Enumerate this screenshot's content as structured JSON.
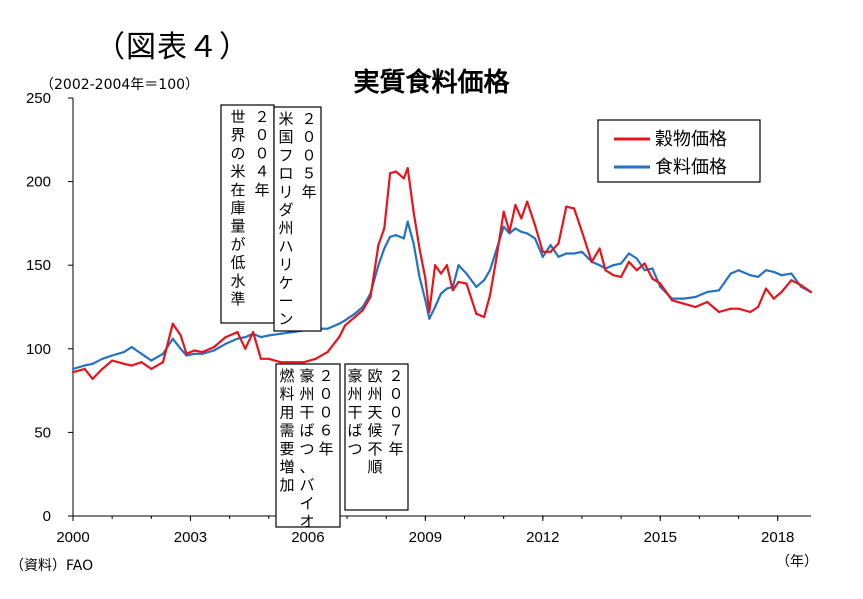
{
  "figure_label": "（図表４）",
  "chart_data": {
    "type": "line",
    "title": "実質食料価格",
    "unit_label": "（2002-2004年＝100）",
    "source": "（資料）FAO",
    "x_unit": "（年）",
    "xlim": [
      2000,
      2018.85
    ],
    "ylim": [
      0,
      250
    ],
    "x_ticks": [
      "2000",
      "2003",
      "2006",
      "2009",
      "2012",
      "2015",
      "2018"
    ],
    "y_ticks": [
      "0",
      "50",
      "100",
      "150",
      "200",
      "250"
    ],
    "grid": false,
    "legend_position": "top-right",
    "series": [
      {
        "name": "穀物価格",
        "color": "#e8141c",
        "x": [
          2000.0,
          2000.3,
          2000.5,
          2000.75,
          2001.0,
          2001.3,
          2001.5,
          2001.75,
          2002.0,
          2002.3,
          2002.55,
          2002.75,
          2002.9,
          2003.1,
          2003.3,
          2003.6,
          2003.9,
          2004.2,
          2004.4,
          2004.6,
          2004.8,
          2005.0,
          2005.3,
          2005.6,
          2005.9,
          2006.2,
          2006.5,
          2006.8,
          2006.95,
          2007.2,
          2007.4,
          2007.6,
          2007.8,
          2007.95,
          2008.1,
          2008.25,
          2008.45,
          2008.55,
          2008.7,
          2008.85,
          2009.0,
          2009.1,
          2009.25,
          2009.4,
          2009.55,
          2009.7,
          2009.85,
          2010.05,
          2010.3,
          2010.5,
          2010.65,
          2010.8,
          2011.0,
          2011.15,
          2011.3,
          2011.45,
          2011.6,
          2011.8,
          2012.0,
          2012.2,
          2012.4,
          2012.6,
          2012.8,
          2013.0,
          2013.25,
          2013.45,
          2013.6,
          2013.8,
          2014.0,
          2014.2,
          2014.4,
          2014.6,
          2014.8,
          2015.0,
          2015.3,
          2015.6,
          2015.9,
          2016.2,
          2016.5,
          2016.8,
          2017.0,
          2017.3,
          2017.5,
          2017.7,
          2017.9,
          2018.1,
          2018.35,
          2018.6,
          2018.85
        ],
        "values": [
          86,
          88,
          82,
          88,
          93,
          91,
          90,
          92,
          88,
          92,
          115,
          108,
          97,
          99,
          98,
          101,
          107,
          110,
          100,
          110,
          94,
          94,
          92,
          92,
          92,
          94,
          98,
          107,
          114,
          119,
          123,
          131,
          162,
          172,
          205,
          206,
          202,
          208,
          182,
          160,
          142,
          122,
          150,
          145,
          150,
          135,
          140,
          139,
          121,
          119,
          132,
          152,
          182,
          170,
          186,
          178,
          188,
          174,
          158,
          158,
          163,
          185,
          184,
          170,
          152,
          160,
          147,
          144,
          143,
          152,
          147,
          151,
          142,
          139,
          129,
          127,
          125,
          128,
          122,
          124,
          124,
          122,
          125,
          136,
          130,
          134,
          141,
          138,
          134
        ]
      },
      {
        "name": "食料価格",
        "color": "#2372c4",
        "x": [
          2000.0,
          2000.3,
          2000.5,
          2000.75,
          2001.0,
          2001.3,
          2001.5,
          2001.75,
          2002.0,
          2002.3,
          2002.55,
          2002.75,
          2002.9,
          2003.1,
          2003.3,
          2003.6,
          2003.9,
          2004.2,
          2004.4,
          2004.6,
          2004.8,
          2005.0,
          2005.3,
          2005.6,
          2005.9,
          2006.2,
          2006.5,
          2006.8,
          2006.95,
          2007.2,
          2007.4,
          2007.6,
          2007.8,
          2007.95,
          2008.1,
          2008.25,
          2008.45,
          2008.55,
          2008.7,
          2008.85,
          2009.0,
          2009.1,
          2009.25,
          2009.4,
          2009.55,
          2009.7,
          2009.85,
          2010.05,
          2010.3,
          2010.5,
          2010.65,
          2010.8,
          2011.0,
          2011.15,
          2011.3,
          2011.45,
          2011.6,
          2011.8,
          2012.0,
          2012.2,
          2012.4,
          2012.6,
          2012.8,
          2013.0,
          2013.25,
          2013.45,
          2013.6,
          2013.8,
          2014.0,
          2014.2,
          2014.4,
          2014.6,
          2014.8,
          2015.0,
          2015.3,
          2015.6,
          2015.9,
          2016.2,
          2016.5,
          2016.8,
          2017.0,
          2017.3,
          2017.5,
          2017.7,
          2017.9,
          2018.1,
          2018.35,
          2018.6,
          2018.85
        ],
        "values": [
          88,
          90,
          91,
          94,
          96,
          98,
          101,
          97,
          93,
          97,
          106,
          100,
          96,
          97,
          97,
          99,
          103,
          106,
          107,
          109,
          107,
          108,
          109,
          110,
          111,
          112,
          112,
          115,
          117,
          121,
          125,
          133,
          150,
          160,
          167,
          168,
          166,
          176,
          163,
          143,
          129,
          118,
          125,
          133,
          136,
          137,
          150,
          145,
          137,
          141,
          147,
          158,
          173,
          169,
          172,
          170,
          169,
          166,
          155,
          162,
          155,
          157,
          157,
          158,
          152,
          150,
          148,
          150,
          151,
          157,
          154,
          147,
          148,
          137,
          130,
          130,
          131,
          134,
          135,
          145,
          147,
          144,
          143,
          147,
          146,
          144,
          145,
          137,
          134
        ]
      }
    ],
    "annotations": [
      {
        "id": "rice",
        "text": "２００４年世界の米在庫量が低水準"
      },
      {
        "id": "hurricane",
        "text": "２００５年米国フロリダ州ハリケーン"
      },
      {
        "id": "drought2006",
        "text": "２００６年豪州干ばつ、バイオ燃料用需要増加"
      },
      {
        "id": "drought2007",
        "text": "２００７年欧州天候不順豪州干ばつ"
      }
    ]
  }
}
